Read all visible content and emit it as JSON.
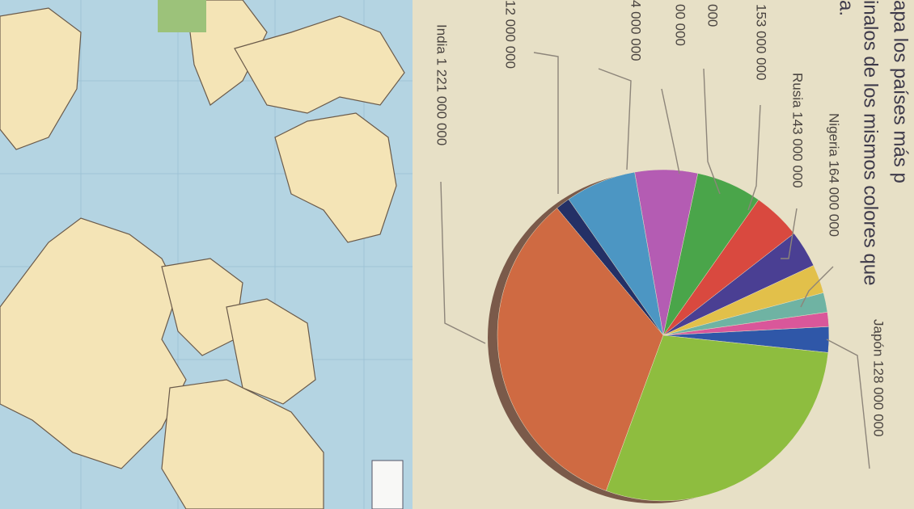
{
  "header": {
    "lines": [
      "apa los países más p",
      "inalos de los mismos colores que",
      "a."
    ]
  },
  "pie": {
    "labels": [
      "Japón 128 000 000",
      "Nigeria 164 000 000",
      "Rusia 143 000 000",
      "153 000 000",
      "000",
      "00 000",
      "4 000 000",
      "12 000 000",
      "India 1 221 000 000"
    ],
    "slices": [
      {
        "color": "#2f57a8",
        "value": 2.5
      },
      {
        "color": "#d9579a",
        "value": 1.4
      },
      {
        "color": "#6fb3a3",
        "value": 1.9
      },
      {
        "color": "#e2c04a",
        "value": 2.8
      },
      {
        "color": "#4a3f93",
        "value": 3.6
      },
      {
        "color": "#d9493f",
        "value": 4.7
      },
      {
        "color": "#4aa54a",
        "value": 6.4
      },
      {
        "color": "#b45cb3",
        "value": 6.1
      },
      {
        "color": "#4c96c3",
        "value": 6.9
      },
      {
        "color": "#243066",
        "value": 1.4
      },
      {
        "color": "#cf6a42",
        "value": 33.3
      },
      {
        "color": "#8ebd3f",
        "value": 28.9
      }
    ]
  }
}
